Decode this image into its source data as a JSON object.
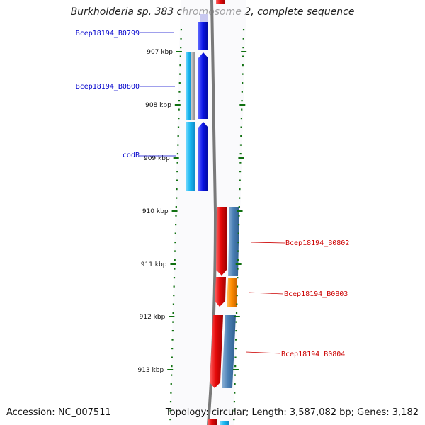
{
  "title": "Burkholderia sp. 383 chromosome 2, complete sequence",
  "footer": {
    "accession": "Accession: NC_007511",
    "summary": "Topology: circular; Length: 3,587,082 bp; Genes: 3,182"
  },
  "scale": {
    "ticks": [
      "907 kbp",
      "908 kbp",
      "909 kbp",
      "910 kbp",
      "911 kbp",
      "912 kbp",
      "913 kbp"
    ]
  },
  "genes": [
    {
      "name": "Bcep18194_B0799",
      "strand": "forward",
      "color": "#0000cc"
    },
    {
      "name": "Bcep18194_B0800",
      "strand": "forward",
      "color": "#0000cc"
    },
    {
      "name": "codB",
      "strand": "forward",
      "color": "#0000cc"
    },
    {
      "name": "Bcep18194_B0802",
      "strand": "reverse",
      "color": "#cc0000"
    },
    {
      "name": "Bcep18194_B0803",
      "strand": "reverse",
      "color": "#cc0000"
    },
    {
      "name": "Bcep18194_B0804",
      "strand": "reverse",
      "color": "#cc0000"
    }
  ],
  "colors": {
    "forward_cds": "#0a14e6",
    "forward_feature": "#1ab8f0",
    "reverse_cds": "#e60a0a",
    "reverse_feature": "#4a7fb5",
    "highlight_feature": "#ff8c00",
    "backbone": "#808080",
    "ticks": "#107010"
  }
}
